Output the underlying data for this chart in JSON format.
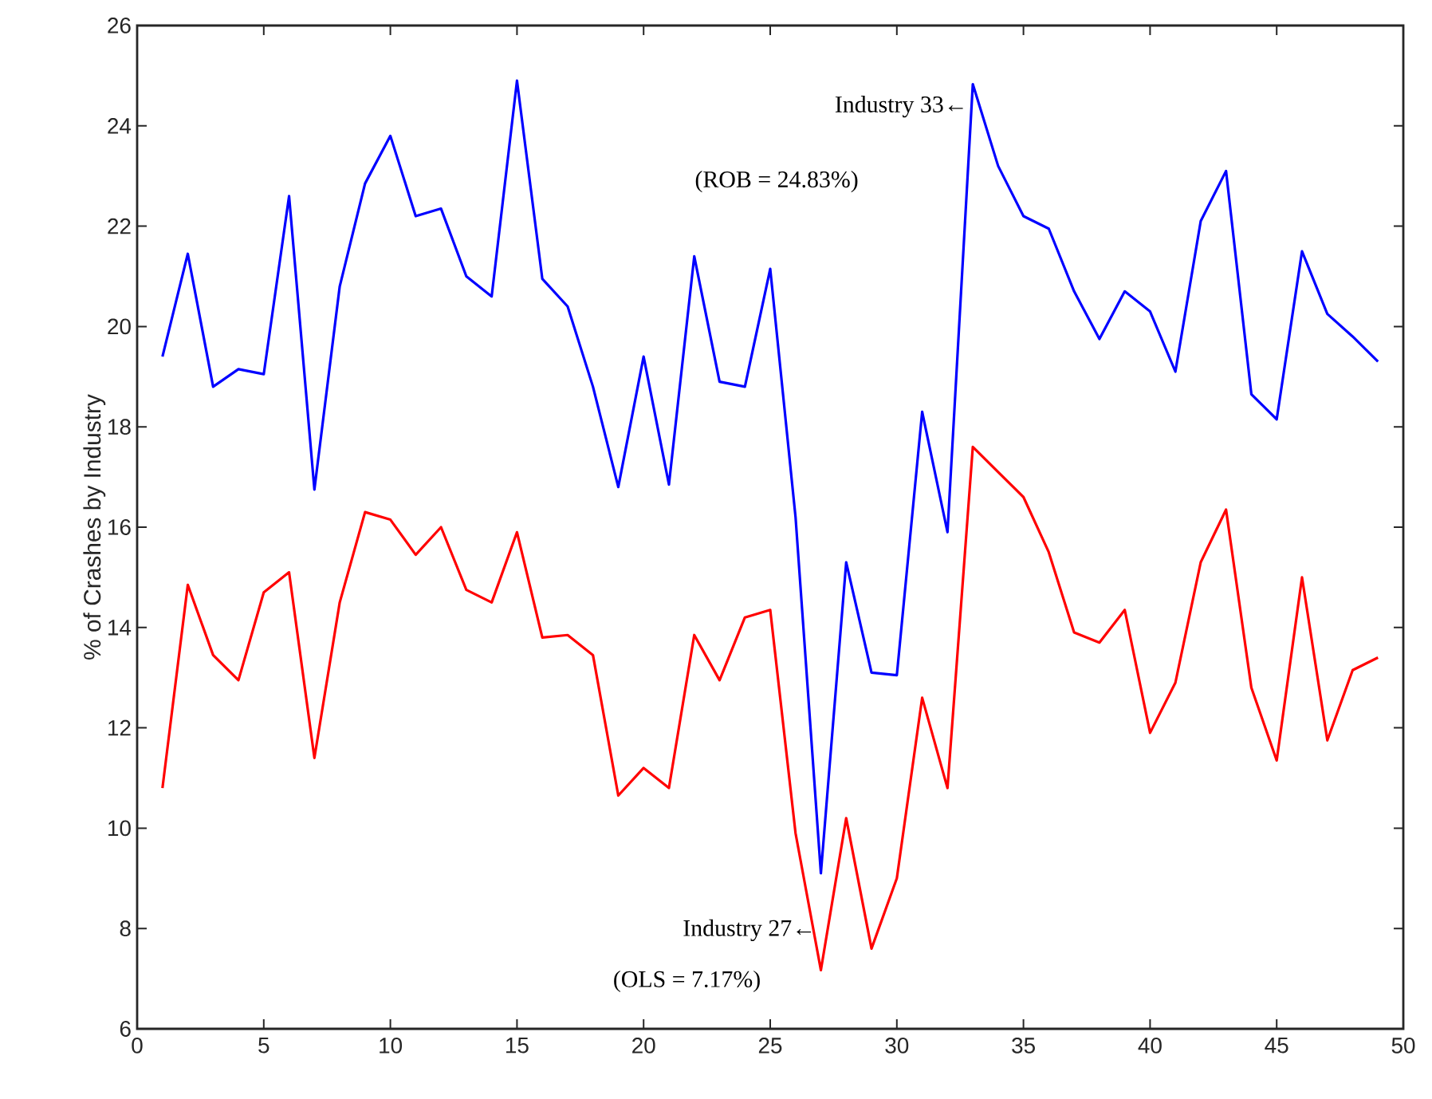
{
  "chart_data": {
    "type": "line",
    "ylabel": "% of Crashes by Industry",
    "x": [
      1,
      2,
      3,
      4,
      5,
      6,
      7,
      8,
      9,
      10,
      11,
      12,
      13,
      14,
      15,
      16,
      17,
      18,
      19,
      20,
      21,
      22,
      23,
      24,
      25,
      26,
      27,
      28,
      29,
      30,
      31,
      32,
      33,
      34,
      35,
      36,
      37,
      38,
      39,
      40,
      41,
      42,
      43,
      44,
      45,
      46,
      47,
      48,
      49
    ],
    "series": [
      {
        "color": "#0000ff",
        "values": [
          19.4,
          21.45,
          18.8,
          19.15,
          19.05,
          22.6,
          16.75,
          20.8,
          22.85,
          23.8,
          22.2,
          22.35,
          21.0,
          20.6,
          24.9,
          20.95,
          20.4,
          18.8,
          16.8,
          19.4,
          16.85,
          21.4,
          18.9,
          18.8,
          21.15,
          16.2,
          9.1,
          15.3,
          13.1,
          13.05,
          18.3,
          15.9,
          24.83,
          23.2,
          22.2,
          21.95,
          20.7,
          19.75,
          20.7,
          20.3,
          19.1,
          22.1,
          23.1,
          18.65,
          18.15,
          21.5,
          20.25,
          19.8,
          19.3
        ]
      },
      {
        "color": "#ff0000",
        "values": [
          10.8,
          14.85,
          13.45,
          12.95,
          14.7,
          15.1,
          11.4,
          14.5,
          16.3,
          16.15,
          15.45,
          16.0,
          14.75,
          14.5,
          15.9,
          13.8,
          13.85,
          13.45,
          10.65,
          11.2,
          10.8,
          13.85,
          12.95,
          14.2,
          14.35,
          9.9,
          7.17,
          10.2,
          7.6,
          9.0,
          12.6,
          10.8,
          17.6,
          17.1,
          16.6,
          15.5,
          13.9,
          13.7,
          14.35,
          11.9,
          12.9,
          15.3,
          16.35,
          12.8,
          11.35,
          15.0,
          11.75,
          13.15,
          13.4
        ]
      }
    ],
    "annotations": [
      {
        "text": "Industry 33←",
        "x": 33,
        "y": 24.83
      },
      "(ROB = 24.83%)",
      {
        "text": "Industry 27←",
        "x": 27,
        "y": 7.17
      },
      "(OLS = 7.17%)"
    ],
    "xlim": [
      0,
      50
    ],
    "ylim": [
      6,
      26
    ],
    "xticks": [
      0,
      5,
      10,
      15,
      20,
      25,
      30,
      35,
      40,
      45,
      50
    ],
    "yticks": [
      6,
      8,
      10,
      12,
      14,
      16,
      18,
      20,
      22,
      24,
      26
    ],
    "grid": false,
    "marker": "none",
    "line_style": "solid"
  }
}
